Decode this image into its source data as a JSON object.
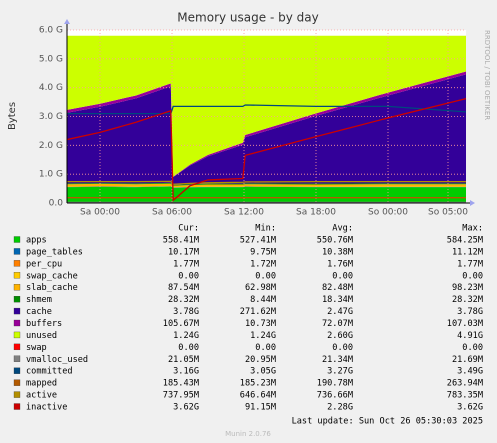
{
  "chart_data": {
    "type": "stacked_area",
    "title": "Memory usage - by day",
    "y_label": "Bytes",
    "watermark": "RRDTOOL / TOBI OETIKER",
    "x": [
      -2.75,
      0,
      3,
      5.9,
      6.1,
      7.5,
      9,
      11.9,
      12.1,
      18,
      24,
      30.5
    ],
    "xlim": [
      -2.75,
      30.5
    ],
    "xticks": [
      {
        "value": 0,
        "label": "Sa 00:00"
      },
      {
        "value": 6,
        "label": "Sa 06:00"
      },
      {
        "value": 12,
        "label": "Sa 12:00"
      },
      {
        "value": 18,
        "label": "Sa 18:00"
      },
      {
        "value": 24,
        "label": "So 00:00"
      },
      {
        "value": 29,
        "label": "So 05:00"
      }
    ],
    "ylim": [
      0,
      6
    ],
    "yticks": [
      {
        "value": 0,
        "label": "0.0"
      },
      {
        "value": 1,
        "label": "1.0 G"
      },
      {
        "value": 2,
        "label": "2.0 G"
      },
      {
        "value": 3,
        "label": "3.0 G"
      },
      {
        "value": 4,
        "label": "4.0 G"
      },
      {
        "value": 5,
        "label": "5.0 G"
      },
      {
        "value": 6,
        "label": "6.0 G"
      }
    ],
    "grid": true,
    "series": [
      {
        "name": "apps",
        "color": "#00CC00",
        "kind": "area",
        "values": [
          0.55,
          0.56,
          0.55,
          0.57,
          0.53,
          0.54,
          0.55,
          0.55,
          0.56,
          0.55,
          0.55,
          0.55
        ]
      },
      {
        "name": "page_tables",
        "color": "#0066B3",
        "kind": "area",
        "values": [
          0.01,
          0.01,
          0.01,
          0.01,
          0.01,
          0.01,
          0.01,
          0.01,
          0.01,
          0.01,
          0.01,
          0.01
        ]
      },
      {
        "name": "per_cpu",
        "color": "#FF8000",
        "kind": "area",
        "values": [
          0.002,
          0.002,
          0.002,
          0.002,
          0.002,
          0.002,
          0.002,
          0.002,
          0.002,
          0.002,
          0.002,
          0.002
        ]
      },
      {
        "name": "swap_cache",
        "color": "#FFCC00",
        "kind": "area",
        "values": [
          0,
          0,
          0,
          0,
          0,
          0,
          0,
          0,
          0,
          0,
          0,
          0
        ]
      },
      {
        "name": "slab_cache",
        "color": "#FFB300",
        "kind": "area",
        "values": [
          0.09,
          0.09,
          0.09,
          0.09,
          0.06,
          0.07,
          0.08,
          0.08,
          0.08,
          0.08,
          0.09,
          0.09
        ]
      },
      {
        "name": "shmem",
        "color": "#008F00",
        "kind": "area",
        "values": [
          0.028,
          0.028,
          0.028,
          0.028,
          0.028,
          0.028,
          0.028,
          0.028,
          0.028,
          0.028,
          0.028,
          0.028
        ]
      },
      {
        "name": "cache",
        "color": "#330099",
        "kind": "area",
        "values": [
          2.45,
          2.65,
          2.95,
          3.35,
          0.27,
          0.65,
          0.95,
          1.35,
          1.6,
          2.35,
          3.05,
          3.78
        ]
      },
      {
        "name": "buffers",
        "color": "#990099",
        "kind": "area",
        "values": [
          0.1,
          0.1,
          0.1,
          0.1,
          0.01,
          0.03,
          0.05,
          0.07,
          0.08,
          0.09,
          0.1,
          0.1
        ]
      },
      {
        "name": "unused",
        "color": "#CCFF00",
        "kind": "area",
        "values": [
          2.57,
          2.36,
          2.07,
          1.65,
          4.89,
          4.47,
          4.13,
          3.71,
          3.44,
          2.69,
          1.97,
          1.24
        ]
      },
      {
        "name": "swap",
        "color": "#FF0000",
        "kind": "area",
        "values": [
          0,
          0,
          0,
          0,
          0,
          0,
          0,
          0,
          0,
          0,
          0,
          0
        ]
      },
      {
        "name": "vmalloc_used",
        "color": "#808080",
        "kind": "line",
        "values": [
          0.021,
          0.021,
          0.021,
          0.021,
          0.021,
          0.021,
          0.021,
          0.021,
          0.021,
          0.021,
          0.021,
          0.021
        ]
      },
      {
        "name": "committed",
        "color": "#00487D",
        "kind": "line",
        "values": [
          3.1,
          3.1,
          3.1,
          3.1,
          3.35,
          3.35,
          3.35,
          3.35,
          3.4,
          3.35,
          3.35,
          3.16
        ]
      },
      {
        "name": "mapped",
        "color": "#B35A00",
        "kind": "line",
        "values": [
          0.185,
          0.185,
          0.185,
          0.185,
          0.185,
          0.185,
          0.185,
          0.185,
          0.185,
          0.185,
          0.185,
          0.185
        ]
      },
      {
        "name": "active",
        "color": "#B38F00",
        "kind": "line",
        "values": [
          0.74,
          0.74,
          0.74,
          0.75,
          0.65,
          0.68,
          0.7,
          0.72,
          0.73,
          0.74,
          0.74,
          0.74
        ]
      },
      {
        "name": "inactive",
        "color": "#CC0000",
        "kind": "line",
        "values": [
          2.2,
          2.45,
          2.8,
          3.2,
          0.09,
          0.6,
          0.8,
          0.85,
          1.65,
          2.3,
          2.95,
          3.62
        ]
      }
    ],
    "stats": {
      "columns": [
        "Cur:",
        "Min:",
        "Avg:",
        "Max:"
      ],
      "rows": [
        [
          "558.41M",
          "527.41M",
          "550.76M",
          "584.25M"
        ],
        [
          "10.17M",
          "9.75M",
          "10.38M",
          "11.12M"
        ],
        [
          "1.77M",
          "1.72M",
          "1.76M",
          "1.77M"
        ],
        [
          "0.00",
          "0.00",
          "0.00",
          "0.00"
        ],
        [
          "87.54M",
          "62.98M",
          "82.48M",
          "98.23M"
        ],
        [
          "28.32M",
          "8.44M",
          "18.34M",
          "28.32M"
        ],
        [
          "3.78G",
          "271.62M",
          "2.47G",
          "3.78G"
        ],
        [
          "105.67M",
          "10.73M",
          "72.07M",
          "107.03M"
        ],
        [
          "1.24G",
          "1.24G",
          "2.60G",
          "4.91G"
        ],
        [
          "0.00",
          "0.00",
          "0.00",
          "0.00"
        ],
        [
          "21.05M",
          "20.95M",
          "21.34M",
          "21.69M"
        ],
        [
          "3.16G",
          "3.05G",
          "3.27G",
          "3.49G"
        ],
        [
          "185.43M",
          "185.23M",
          "190.78M",
          "263.94M"
        ],
        [
          "737.95M",
          "646.64M",
          "736.66M",
          "783.35M"
        ],
        [
          "3.62G",
          "91.15M",
          "2.28G",
          "3.62G"
        ]
      ]
    },
    "last_update": "Last update: Sun Oct 26 05:30:03 2025",
    "footer": "Munin 2.0.76"
  }
}
